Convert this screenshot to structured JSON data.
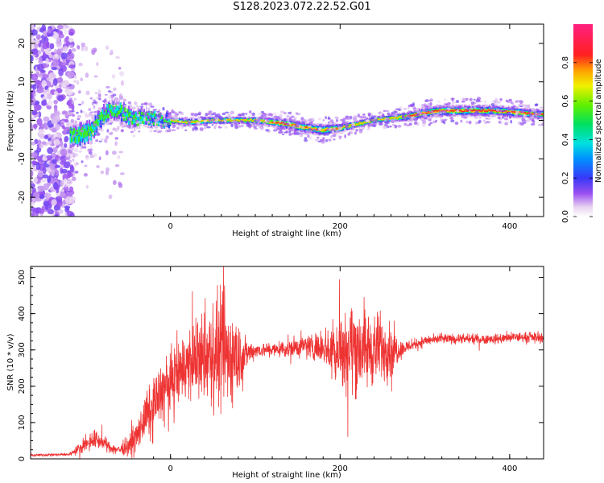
{
  "title": "S128.2023.072.22.52.G01",
  "chart_data": [
    {
      "type": "heatmap",
      "title": "",
      "xlabel": "Height of straight line (km)",
      "ylabel": "Frequency (Hz)",
      "xlim": [
        -165,
        440
      ],
      "ylim": [
        -25,
        25
      ],
      "xticks": [
        0,
        200,
        400
      ],
      "yticks": [
        -20,
        -10,
        0,
        10,
        20
      ],
      "grid": false,
      "colorbar": {
        "label": "Normalized spectral amplitude",
        "range": [
          0,
          1
        ],
        "ticks": [
          "0.0",
          "0.2",
          "0.4",
          "0.6",
          "0.8"
        ],
        "colormap": "white-violet-blue-cyan-green-yellow-red-magenta"
      },
      "ridge": {
        "x": [
          -110,
          -95,
          -80,
          -70,
          -55,
          -45,
          -30,
          -10,
          0,
          20,
          50,
          80,
          100,
          120,
          140,
          160,
          180,
          200,
          220,
          240,
          260,
          280,
          300,
          320,
          350,
          380,
          410,
          440
        ],
        "y": [
          -4,
          -3,
          1,
          3,
          2,
          0,
          1,
          0,
          0,
          -0.5,
          0,
          0,
          0,
          -0.5,
          -1,
          -2,
          -2.5,
          -2,
          -1,
          0,
          0.5,
          1,
          2,
          2.5,
          2.5,
          2.5,
          2,
          1.5
        ],
        "width_hz": [
          9,
          8,
          7,
          6,
          5,
          4,
          3.5,
          3,
          2.5,
          2.2,
          2,
          2,
          2,
          2.5,
          3,
          3,
          3,
          2.5,
          2,
          2,
          2,
          2.5,
          3,
          3,
          3,
          3,
          2.8,
          2.5
        ]
      },
      "noise_region_x": [
        -165,
        -115
      ]
    },
    {
      "type": "line",
      "title": "",
      "xlabel": "Height of straight line (km)",
      "ylabel": "SNR (10 * v/v)",
      "xlim": [
        -165,
        440
      ],
      "ylim": [
        0,
        530
      ],
      "xticks": [
        0,
        200,
        400
      ],
      "yticks": [
        0,
        100,
        200,
        300,
        400,
        500
      ],
      "grid": false,
      "series_color": "#ee3333",
      "envelope": {
        "x": [
          -165,
          -120,
          -110,
          -100,
          -90,
          -80,
          -70,
          -60,
          -50,
          -40,
          -30,
          -20,
          -10,
          0,
          10,
          20,
          30,
          40,
          50,
          60,
          70,
          80,
          90,
          100,
          120,
          140,
          160,
          180,
          190,
          200,
          210,
          220,
          230,
          240,
          250,
          260,
          270,
          280,
          300,
          320,
          350,
          380,
          410,
          440
        ],
        "mean": [
          10,
          12,
          25,
          40,
          55,
          45,
          30,
          25,
          35,
          60,
          110,
          150,
          190,
          210,
          240,
          260,
          270,
          280,
          285,
          290,
          285,
          280,
          290,
          300,
          300,
          305,
          310,
          310,
          300,
          300,
          305,
          310,
          300,
          300,
          310,
          300,
          300,
          310,
          325,
          330,
          330,
          330,
          335,
          335
        ],
        "amplitude": [
          5,
          6,
          18,
          30,
          40,
          30,
          20,
          18,
          40,
          70,
          90,
          110,
          120,
          130,
          140,
          150,
          160,
          180,
          220,
          240,
          230,
          150,
          60,
          30,
          30,
          40,
          50,
          60,
          120,
          160,
          180,
          200,
          170,
          150,
          140,
          120,
          40,
          25,
          20,
          20,
          20,
          20,
          20,
          20
        ]
      }
    }
  ]
}
